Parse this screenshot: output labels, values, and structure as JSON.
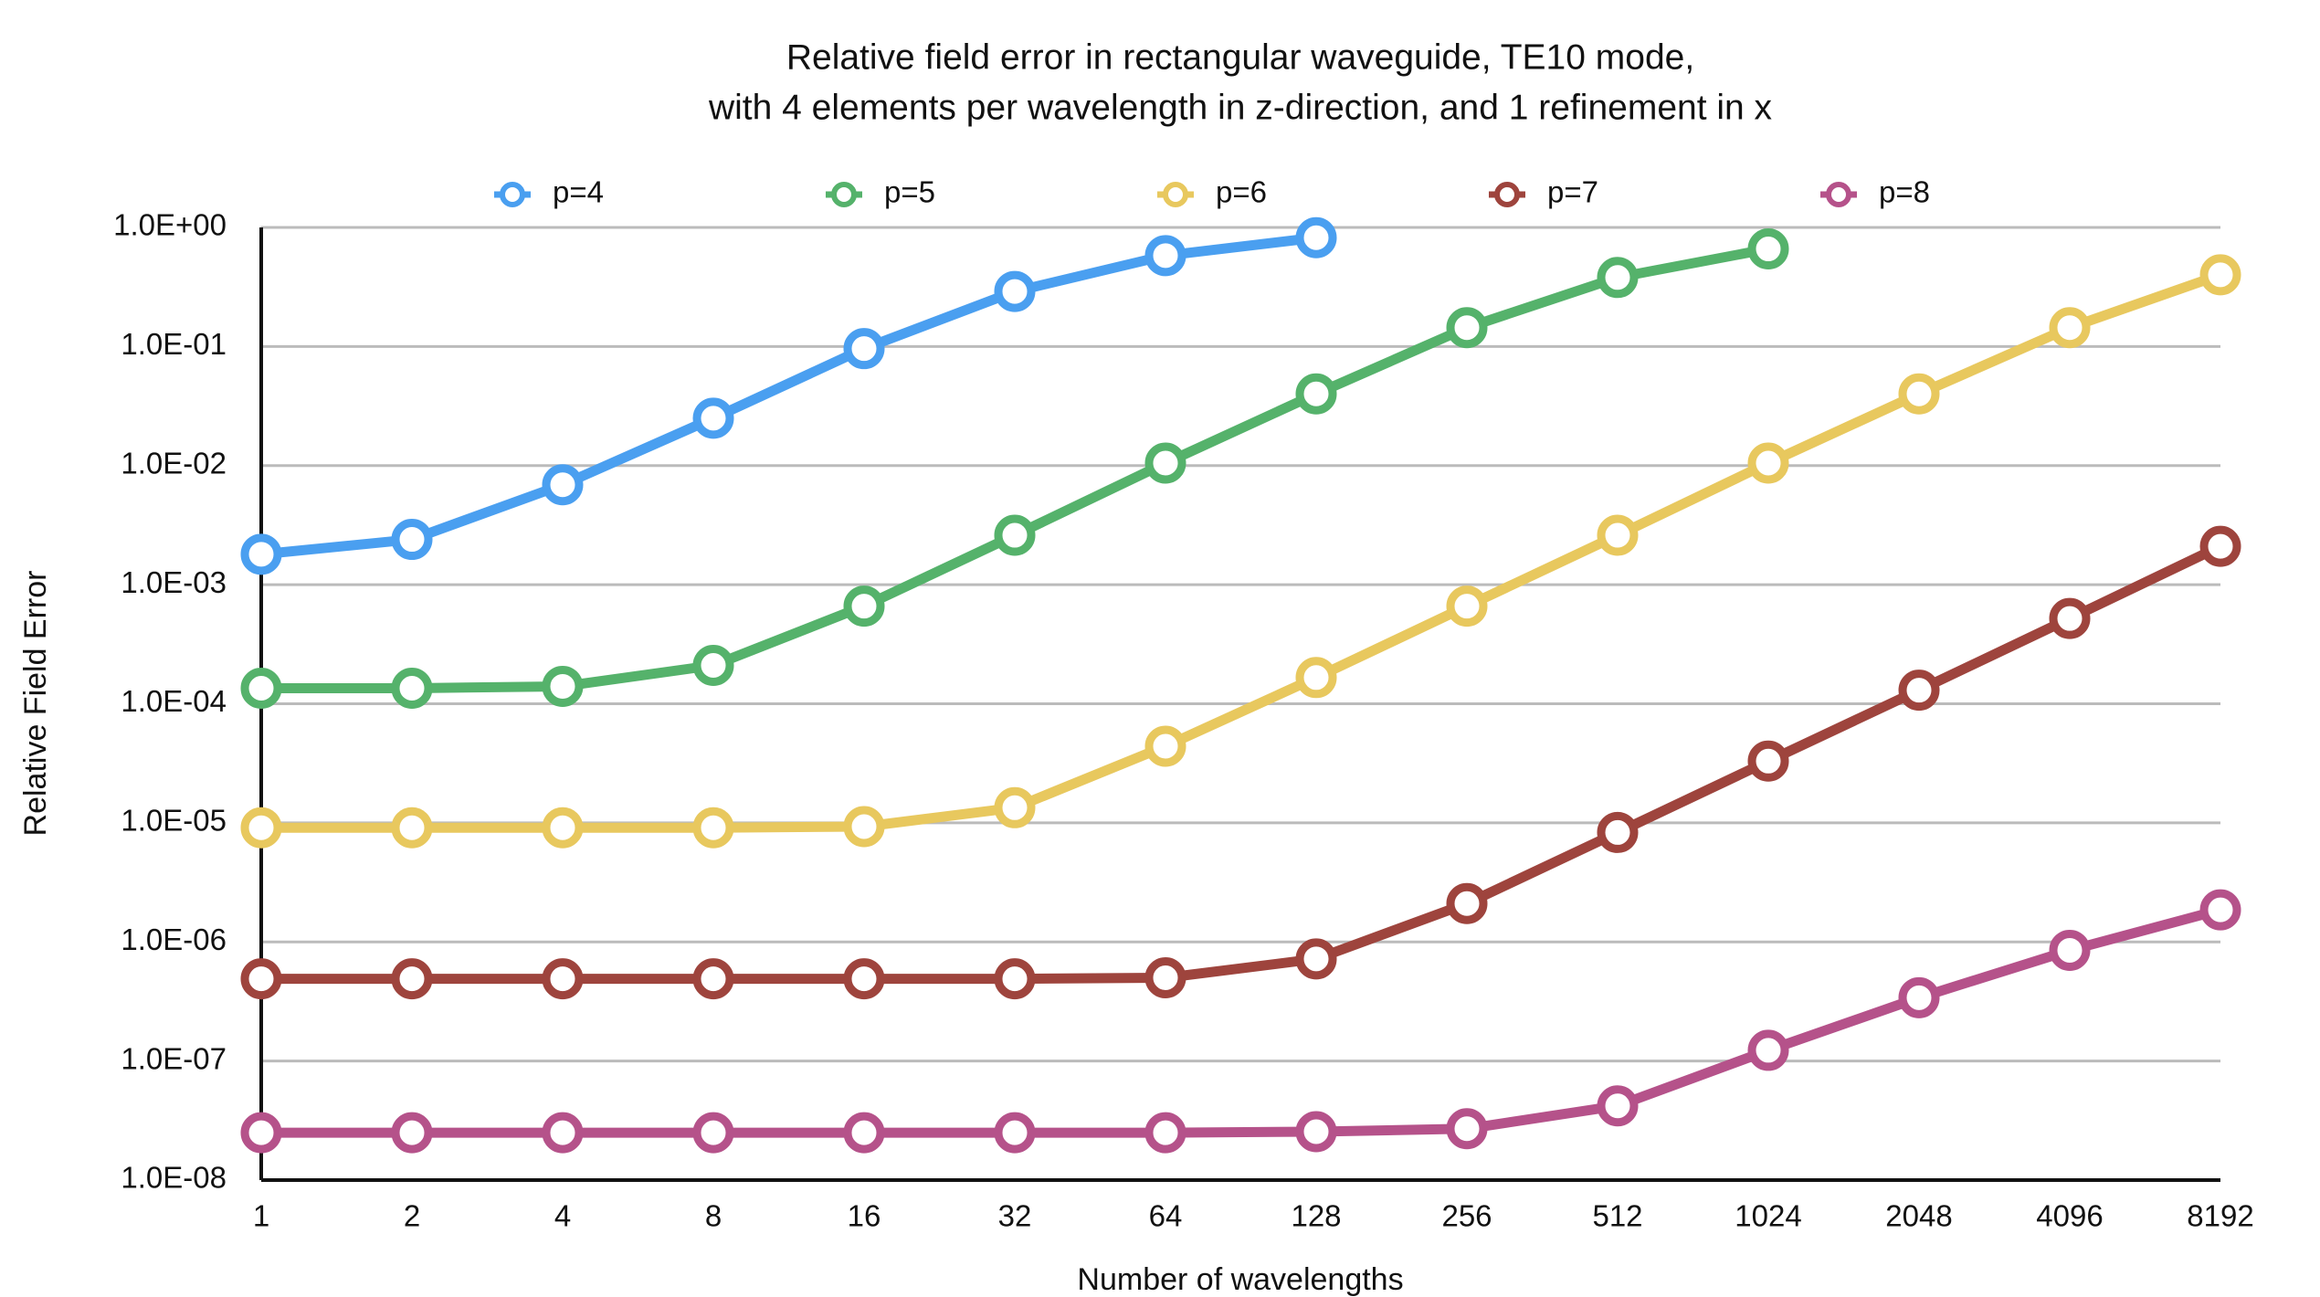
{
  "chart_data": {
    "type": "line",
    "title": [
      "Relative field error in rectangular waveguide, TE10 mode,",
      "with 4 elements per wavelength in z-direction, and 1 refinement in x"
    ],
    "x_label": "Number of wavelengths",
    "y_label": "Relative Field Error",
    "categories": [
      "1",
      "2",
      "4",
      "8",
      "16",
      "32",
      "64",
      "128",
      "256",
      "512",
      "1024",
      "2048",
      "4096",
      "8192"
    ],
    "log_y": true,
    "grid": true,
    "legend": "top",
    "ylim": [
      1e-08,
      1
    ],
    "yticks": [
      {
        "value": 1e-08,
        "label": "1.0E-08"
      },
      {
        "value": 1e-07,
        "label": "1.0E-07"
      },
      {
        "value": 1e-06,
        "label": "1.0E-06"
      },
      {
        "value": 1e-05,
        "label": "1.0E-05"
      },
      {
        "value": 0.0001,
        "label": "1.0E-04"
      },
      {
        "value": 0.001,
        "label": "1.0E-03"
      },
      {
        "value": 0.01,
        "label": "1.0E-02"
      },
      {
        "value": 0.1,
        "label": "1.0E-01"
      },
      {
        "value": 1,
        "label": "1.0E+00"
      }
    ],
    "series": [
      {
        "name": "p=4",
        "color": "#4a9ff0",
        "values": [
          0.0018,
          0.0024,
          0.0069,
          0.025,
          0.096,
          0.29,
          0.58,
          0.82,
          null,
          null,
          null,
          null,
          null,
          null
        ]
      },
      {
        "name": "p=5",
        "color": "#55b26b",
        "values": [
          0.000135,
          0.000135,
          0.00014,
          0.00021,
          0.00066,
          0.0026,
          0.0105,
          0.04,
          0.144,
          0.38,
          0.66,
          null,
          null,
          null
        ]
      },
      {
        "name": "p=6",
        "color": "#e8c85e",
        "values": [
          9.1e-06,
          9.1e-06,
          9.1e-06,
          9.1e-06,
          9.3e-06,
          1.34e-05,
          4.4e-05,
          0.000166,
          0.00066,
          0.0026,
          0.0105,
          0.04,
          0.144,
          0.4
        ]
      },
      {
        "name": "p=7",
        "color": "#9e443d",
        "values": [
          4.9e-07,
          4.9e-07,
          4.9e-07,
          4.9e-07,
          4.9e-07,
          4.9e-07,
          5e-07,
          7.2e-07,
          2.1e-06,
          8.3e-06,
          3.3e-05,
          0.00013,
          0.00052,
          0.0021
        ]
      },
      {
        "name": "p=8",
        "color": "#b5528a",
        "values": [
          2.5e-08,
          2.5e-08,
          2.5e-08,
          2.5e-08,
          2.5e-08,
          2.5e-08,
          2.5e-08,
          2.55e-08,
          2.7e-08,
          4.2e-08,
          1.23e-07,
          3.4e-07,
          8.5e-07,
          1.86e-06
        ]
      }
    ]
  }
}
